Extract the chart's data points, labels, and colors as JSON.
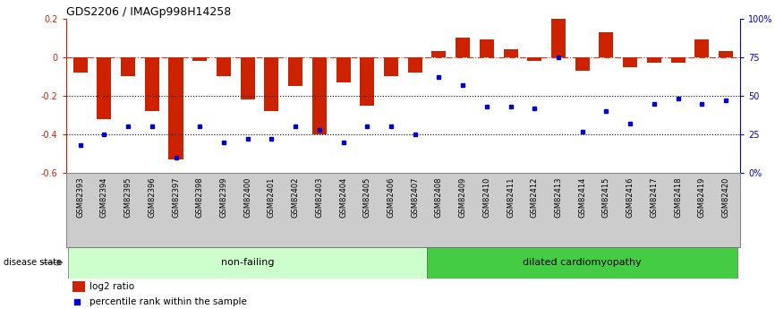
{
  "title": "GDS2206 / IMAGp998H14258",
  "samples": [
    "GSM82393",
    "GSM82394",
    "GSM82395",
    "GSM82396",
    "GSM82397",
    "GSM82398",
    "GSM82399",
    "GSM82400",
    "GSM82401",
    "GSM82402",
    "GSM82403",
    "GSM82404",
    "GSM82405",
    "GSM82406",
    "GSM82407",
    "GSM82408",
    "GSM82409",
    "GSM82410",
    "GSM82411",
    "GSM82412",
    "GSM82413",
    "GSM82414",
    "GSM82415",
    "GSM82416",
    "GSM82417",
    "GSM82418",
    "GSM82419",
    "GSM82420"
  ],
  "log2_ratio": [
    -0.08,
    -0.32,
    -0.1,
    -0.28,
    -0.53,
    -0.02,
    -0.1,
    -0.22,
    -0.28,
    -0.15,
    -0.4,
    -0.13,
    -0.25,
    -0.1,
    -0.08,
    0.03,
    0.1,
    0.09,
    0.04,
    -0.02,
    0.2,
    -0.07,
    0.13,
    -0.05,
    -0.03,
    -0.03,
    0.09,
    0.03
  ],
  "percentile": [
    18,
    25,
    30,
    30,
    10,
    30,
    20,
    22,
    22,
    30,
    28,
    20,
    30,
    30,
    25,
    62,
    57,
    43,
    43,
    42,
    75,
    27,
    40,
    32,
    45,
    48,
    45,
    47
  ],
  "nonfailing_count": 15,
  "bar_color": "#cc2200",
  "dot_color": "#0000cc",
  "nonfailing_color": "#ccffcc",
  "dilated_color": "#44cc44",
  "ylim_left": [
    -0.6,
    0.2
  ],
  "ylim_right": [
    0,
    100
  ],
  "hlines_dotted": [
    -0.2,
    -0.4
  ],
  "right_tick_labels": [
    "0%",
    "25",
    "50",
    "75",
    "100%"
  ],
  "background_color": "#ffffff",
  "xlabel_bg": "#cccccc",
  "left_tick_labels": [
    "0.2",
    "0",
    "-0.2",
    "-0.4",
    "-0.6"
  ],
  "left_ticks": [
    0.2,
    0.0,
    -0.2,
    -0.4,
    -0.6
  ]
}
